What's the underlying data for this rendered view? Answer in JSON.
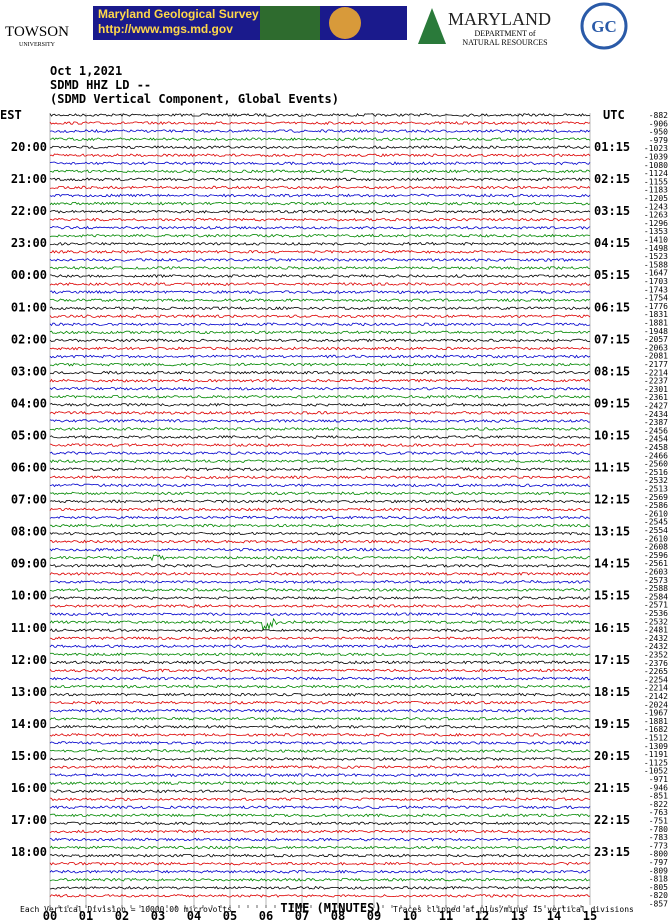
{
  "header": {
    "towson": "TOWSON",
    "towson_sub": "UNIVERSITY",
    "mgs_title": "Maryland Geological Survey",
    "mgs_url": "http://www.mgs.md.gov",
    "dnr_title": "MARYLAND",
    "dnr_line1": "DEPARTMENT of",
    "dnr_line2": "NATURAL RESOURCES",
    "gc": "GC"
  },
  "title_lines": [
    "Oct 1,2021",
    "SDMD HHZ LD --",
    "(SDMD Vertical Component, Global Events)"
  ],
  "left_labels": {
    "zone": "EST",
    "hours": [
      "20:00",
      "21:00",
      "22:00",
      "23:00",
      "00:00",
      "01:00",
      "02:00",
      "03:00",
      "04:00",
      "05:00",
      "06:00",
      "07:00",
      "08:00",
      "09:00",
      "10:00",
      "11:00",
      "12:00",
      "13:00",
      "14:00",
      "15:00",
      "16:00",
      "17:00",
      "18:00"
    ]
  },
  "right_labels": {
    "zone": "UTC",
    "hours": [
      "01:15",
      "02:15",
      "03:15",
      "04:15",
      "05:15",
      "06:15",
      "07:15",
      "08:15",
      "09:15",
      "10:15",
      "11:15",
      "12:15",
      "13:15",
      "14:15",
      "15:15",
      "16:15",
      "17:15",
      "18:15",
      "19:15",
      "20:15",
      "21:15",
      "22:15",
      "23:15"
    ]
  },
  "trace_offsets": [
    "-882",
    "-906",
    "-950",
    "-979",
    "-1023",
    "-1039",
    "-1080",
    "-1124",
    "-1155",
    "-1183",
    "-1205",
    "-1243",
    "-1263",
    "-1296",
    "-1353",
    "-1410",
    "-1498",
    "-1523",
    "-1588",
    "-1647",
    "-1703",
    "-1743",
    "-1754",
    "-1776",
    "-1831",
    "-1881",
    "-1948",
    "-2057",
    "-2063",
    "-2081",
    "-2177",
    "-2214",
    "-2237",
    "-2301",
    "-2361",
    "-2427",
    "-2434",
    "-2387",
    "-2456",
    "-2454",
    "-2458",
    "-2466",
    "-2560",
    "-2516",
    "-2532",
    "-2513",
    "-2569",
    "-2586",
    "-2610",
    "-2545",
    "-2554",
    "-2610",
    "-2608",
    "-2596",
    "-2561",
    "-2603",
    "-2573",
    "-2588",
    "-2584",
    "-2571",
    "-2536",
    "-2532",
    "-2481",
    "-2432",
    "-2432",
    "-2352",
    "-2376",
    "-2265",
    "-2254",
    "-2214",
    "-2142",
    "-2024",
    "-1967",
    "-1881",
    "-1682",
    "-1512",
    "-1309",
    "-1191",
    "-1125",
    "-1052",
    "-971",
    "-946",
    "-851",
    "-822",
    "-763",
    "-751",
    "-780",
    "-783",
    "-773",
    "-800",
    "-797",
    "-809",
    "-818",
    "-805",
    "-820",
    "-857"
  ],
  "x_axis": {
    "ticks": [
      "00",
      "01",
      "02",
      "03",
      "04",
      "05",
      "06",
      "07",
      "08",
      "09",
      "10",
      "11",
      "12",
      "13",
      "14",
      "15"
    ],
    "title": "TIME (MINUTES)"
  },
  "footer": {
    "scale": "Each Vertical Division = 10000.00 microvolts",
    "clip": "Traces clipped at plus/minus 15 vertical divisions"
  }
}
